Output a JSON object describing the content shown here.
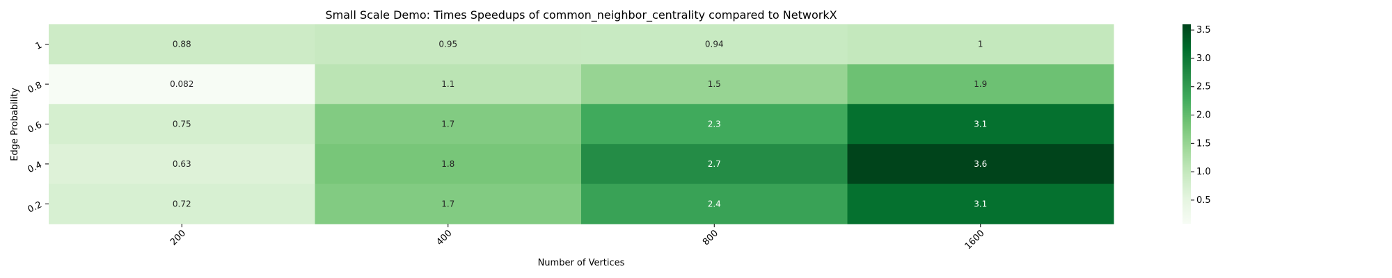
{
  "chart_data": {
    "type": "heatmap",
    "title": "Small Scale Demo: Times Speedups of common_neighbor_centrality compared to NetworkX",
    "xlabel": "Number of Vertices",
    "ylabel": "Edge Probability",
    "x_categories": [
      "200",
      "400",
      "800",
      "1600"
    ],
    "y_categories": [
      "1",
      "0.8",
      "0.6",
      "0.4",
      "0.2"
    ],
    "values": [
      [
        0.88,
        0.95,
        0.94,
        1
      ],
      [
        0.082,
        1.1,
        1.5,
        1.9
      ],
      [
        0.75,
        1.7,
        2.3,
        3.1
      ],
      [
        0.63,
        1.8,
        2.7,
        3.6
      ],
      [
        0.72,
        1.7,
        2.4,
        3.1
      ]
    ],
    "cell_labels": [
      [
        "0.88",
        "0.95",
        "0.94",
        "1"
      ],
      [
        "0.082",
        "1.1",
        "1.5",
        "1.9"
      ],
      [
        "0.75",
        "1.7",
        "2.3",
        "3.1"
      ],
      [
        "0.63",
        "1.8",
        "2.7",
        "3.6"
      ],
      [
        "0.72",
        "1.7",
        "2.4",
        "3.1"
      ]
    ],
    "colorbar": {
      "range": [
        0.082,
        3.6
      ],
      "ticks": [
        0.5,
        1.0,
        1.5,
        2.0,
        2.5,
        3.0,
        3.5
      ],
      "tick_labels": [
        "0.5",
        "1.0",
        "1.5",
        "2.0",
        "2.5",
        "3.0",
        "3.5"
      ],
      "colormap": "Greens"
    },
    "grid": false,
    "legend": "colorbar-right"
  }
}
